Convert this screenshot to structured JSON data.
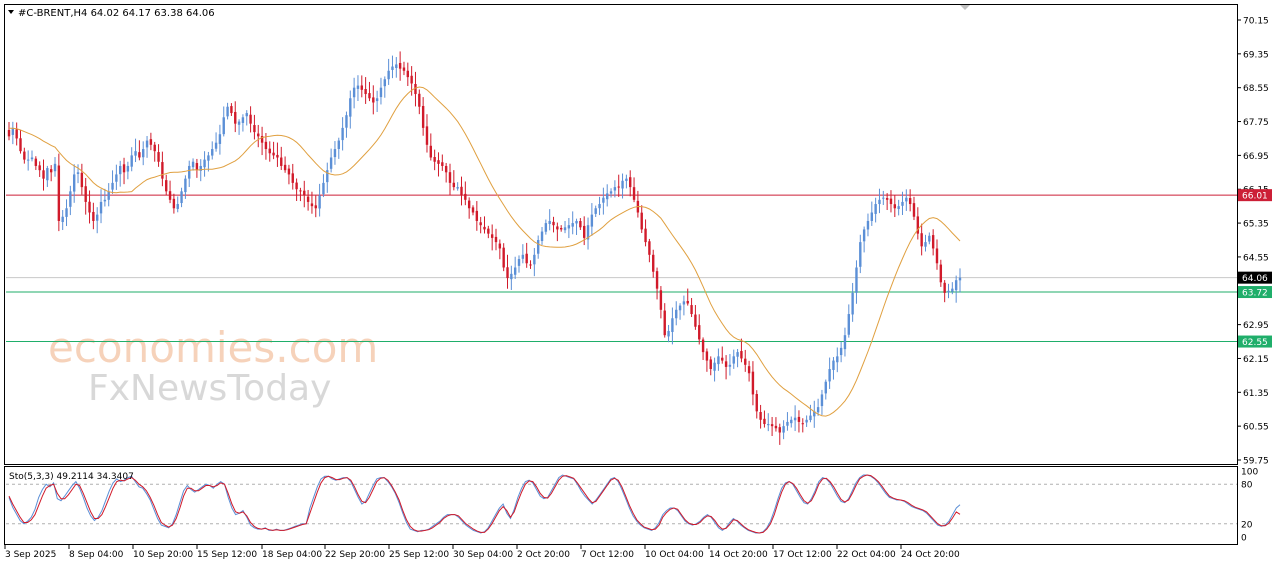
{
  "header": {
    "symbol_line": "#C-BRENT,H4  64.02 64.17 63.38 64.06"
  },
  "watermark": {
    "line1": "economies.com",
    "line2": "FxNewsToday"
  },
  "price_axis": {
    "ticks": [
      "70.15",
      "69.35",
      "68.55",
      "67.75",
      "66.95",
      "66.15",
      "65.35",
      "64.55",
      "63.75",
      "62.95",
      "62.15",
      "61.35",
      "60.55",
      "59.75"
    ],
    "ticks_raw": [
      70.15,
      69.35,
      68.55,
      67.75,
      66.95,
      66.15,
      65.35,
      64.55,
      63.75,
      62.95,
      62.15,
      61.35,
      60.55,
      59.75
    ]
  },
  "levels": {
    "resistance": {
      "label": "66.01",
      "value": 66.01,
      "color": "#cc1f36"
    },
    "current": {
      "label": "64.06",
      "value": 64.06,
      "color": "#000000"
    },
    "support1": {
      "label": "63.72",
      "value": 63.72,
      "color": "#1fae6a"
    },
    "support2": {
      "label": "62.55",
      "value": 62.55,
      "color": "#1fae6a"
    }
  },
  "stochastic": {
    "label": "Sto(5,3,3) 49.2114 34.3407",
    "ticks": [
      "100",
      "80",
      "20",
      "0"
    ],
    "levels": [
      80,
      20
    ],
    "main_color": "#5b8fd6",
    "signal_color": "#d11a2a"
  },
  "time_axis": {
    "labels": [
      "3 Sep 2025",
      "8 Sep 04:00",
      "10 Sep 20:00",
      "15 Sep 12:00",
      "18 Sep 04:00",
      "22 Sep 20:00",
      "25 Sep 12:00",
      "30 Sep 04:00",
      "2 Oct 20:00",
      "7 Oct 12:00",
      "10 Oct 04:00",
      "14 Oct 20:00",
      "17 Oct 12:00",
      "22 Oct 04:00",
      "24 Oct 20:00"
    ]
  },
  "chart_data": {
    "type": "candlestick",
    "instrument": "#C-BRENT",
    "timeframe": "H4",
    "last_bar": {
      "open": 64.02,
      "high": 64.17,
      "low": 63.38,
      "close": 64.06
    },
    "up_color": "#5b8fd6",
    "down_color": "#d11a2a",
    "ma_color": "#e0a040",
    "ylim": [
      59.7,
      70.4
    ],
    "closes": [
      67.4,
      67.6,
      67.35,
      67.05,
      66.85,
      66.85,
      66.9,
      66.7,
      66.6,
      66.4,
      66.65,
      66.55,
      66.75,
      65.4,
      65.5,
      65.7,
      66.1,
      66.5,
      66.55,
      66.2,
      65.85,
      65.6,
      65.4,
      65.55,
      65.85,
      65.9,
      66.1,
      66.3,
      66.5,
      66.7,
      66.55,
      66.7,
      66.95,
      67.05,
      66.9,
      67.1,
      67.3,
      67.2,
      67.05,
      66.8,
      66.4,
      66.1,
      65.9,
      65.7,
      65.8,
      66.1,
      66.4,
      66.7,
      66.8,
      66.6,
      66.7,
      66.85,
      66.95,
      67.1,
      67.25,
      67.45,
      67.85,
      68.1,
      67.95,
      67.7,
      67.75,
      67.85,
      67.95,
      67.7,
      67.5,
      67.4,
      67.25,
      67.1,
      67.0,
      66.95,
      66.9,
      66.7,
      66.6,
      66.5,
      66.3,
      66.15,
      66.1,
      66.0,
      65.85,
      65.75,
      65.7,
      66.0,
      66.3,
      66.6,
      66.9,
      67.1,
      67.3,
      67.6,
      67.9,
      68.3,
      68.55,
      68.6,
      68.5,
      68.4,
      68.3,
      68.2,
      68.3,
      68.55,
      68.75,
      68.95,
      69.05,
      69.1,
      69.0,
      68.95,
      68.8,
      68.65,
      68.4,
      68.1,
      67.6,
      67.2,
      66.9,
      66.8,
      66.75,
      66.7,
      66.55,
      66.3,
      66.2,
      66.2,
      66.0,
      65.9,
      65.7,
      65.6,
      65.4,
      65.3,
      65.2,
      65.1,
      65.0,
      64.9,
      64.75,
      64.3,
      64.05,
      64.15,
      64.3,
      64.5,
      64.6,
      64.4,
      64.35,
      64.6,
      64.95,
      65.15,
      65.35,
      65.4,
      65.3,
      65.2,
      65.2,
      65.25,
      65.3,
      65.35,
      65.4,
      65.25,
      65.0,
      65.3,
      65.55,
      65.7,
      65.8,
      65.95,
      66.05,
      66.1,
      66.2,
      66.2,
      66.35,
      66.4,
      66.2,
      65.9,
      65.6,
      65.2,
      64.9,
      64.6,
      64.2,
      63.8,
      63.3,
      62.7,
      62.8,
      63.1,
      63.3,
      63.4,
      63.5,
      63.45,
      63.2,
      62.9,
      62.6,
      62.3,
      62.1,
      61.9,
      62.05,
      62.2,
      62.1,
      61.95,
      62.0,
      62.2,
      62.3,
      62.15,
      62.0,
      61.8,
      61.3,
      60.9,
      60.7,
      60.6,
      60.6,
      60.55,
      60.5,
      60.4,
      60.55,
      60.65,
      60.7,
      60.75,
      60.65,
      60.6,
      60.7,
      60.8,
      60.9,
      61.0,
      61.3,
      61.6,
      61.9,
      62.1,
      62.2,
      62.4,
      62.7,
      63.2,
      63.7,
      64.3,
      64.9,
      65.2,
      65.4,
      65.6,
      65.8,
      65.9,
      65.95,
      65.9,
      65.8,
      65.7,
      65.75,
      65.85,
      65.95,
      65.8,
      65.5,
      65.1,
      64.8,
      64.9,
      65.05,
      64.75,
      64.4,
      63.95,
      63.7,
      63.75,
      63.8,
      64.0,
      64.06
    ],
    "stoch_main": [
      60,
      45,
      35,
      25,
      20,
      24,
      30,
      42,
      60,
      72,
      80,
      76,
      82,
      58,
      55,
      62,
      70,
      78,
      84,
      74,
      60,
      44,
      32,
      25,
      30,
      40,
      55,
      70,
      82,
      88,
      84,
      86,
      90,
      92,
      84,
      76,
      74,
      66,
      56,
      42,
      28,
      18,
      16,
      14,
      20,
      34,
      52,
      70,
      78,
      72,
      68,
      72,
      76,
      80,
      78,
      74,
      80,
      84,
      80,
      60,
      44,
      34,
      36,
      40,
      30,
      18,
      14,
      12,
      12,
      14,
      10,
      10,
      12,
      10,
      10,
      12,
      14,
      16,
      18,
      20,
      20,
      44,
      60,
      76,
      88,
      92,
      92,
      88,
      86,
      88,
      90,
      90,
      84,
      72,
      60,
      50,
      54,
      66,
      78,
      88,
      90,
      90,
      84,
      76,
      66,
      52,
      36,
      22,
      12,
      10,
      8,
      10,
      10,
      12,
      16,
      20,
      24,
      30,
      34,
      34,
      34,
      30,
      24,
      18,
      14,
      10,
      8,
      6,
      8,
      14,
      24,
      34,
      44,
      50,
      36,
      28,
      42,
      60,
      74,
      84,
      86,
      82,
      72,
      62,
      58,
      60,
      70,
      80,
      90,
      94,
      92,
      90,
      88,
      80,
      70,
      62,
      56,
      50,
      56,
      64,
      72,
      80,
      88,
      90,
      84,
      72,
      58,
      44,
      32,
      24,
      18,
      14,
      12,
      10,
      14,
      22,
      34,
      40,
      44,
      44,
      40,
      32,
      24,
      20,
      18,
      20,
      24,
      30,
      34,
      30,
      22,
      14,
      10,
      14,
      22,
      28,
      24,
      18,
      14,
      10,
      8,
      6,
      6,
      8,
      14,
      24,
      40,
      58,
      74,
      82,
      84,
      80,
      70,
      60,
      52,
      50,
      58,
      70,
      84,
      90,
      88,
      82,
      72,
      62,
      54,
      52,
      58,
      70,
      82,
      90,
      94,
      94,
      92,
      88,
      82,
      74,
      66,
      60,
      58,
      56,
      56,
      54,
      50,
      46,
      44,
      42,
      40,
      36,
      30,
      24,
      18,
      16,
      18,
      24,
      34,
      44,
      49
    ],
    "stoch_signal": [
      62,
      50,
      40,
      30,
      22,
      22,
      26,
      34,
      48,
      62,
      74,
      78,
      80,
      66,
      58,
      58,
      64,
      72,
      80,
      78,
      66,
      52,
      38,
      28,
      28,
      34,
      46,
      60,
      74,
      84,
      86,
      85,
      88,
      90,
      86,
      80,
      76,
      70,
      60,
      48,
      34,
      22,
      18,
      15,
      18,
      28,
      44,
      62,
      74,
      74,
      70,
      70,
      74,
      78,
      78,
      76,
      78,
      82,
      80,
      66,
      50,
      38,
      36,
      38,
      32,
      22,
      16,
      13,
      12,
      13,
      11,
      10,
      11,
      10,
      10,
      11,
      13,
      15,
      17,
      19,
      20,
      36,
      52,
      68,
      82,
      90,
      92,
      90,
      87,
      87,
      89,
      90,
      86,
      76,
      64,
      54,
      52,
      60,
      72,
      84,
      89,
      90,
      86,
      78,
      68,
      56,
      40,
      26,
      16,
      11,
      9,
      9,
      10,
      11,
      14,
      18,
      22,
      28,
      32,
      34,
      34,
      32,
      26,
      20,
      16,
      12,
      9,
      7,
      7,
      12,
      20,
      30,
      40,
      46,
      40,
      30,
      38,
      54,
      68,
      80,
      85,
      84,
      76,
      66,
      60,
      59,
      66,
      76,
      86,
      92,
      93,
      91,
      89,
      82,
      74,
      66,
      58,
      52,
      54,
      62,
      70,
      78,
      86,
      89,
      86,
      76,
      62,
      48,
      36,
      26,
      20,
      15,
      13,
      11,
      12,
      18,
      30,
      37,
      42,
      44,
      42,
      34,
      26,
      21,
      19,
      19,
      22,
      28,
      32,
      31,
      25,
      17,
      12,
      13,
      19,
      26,
      25,
      20,
      15,
      11,
      9,
      7,
      6,
      7,
      12,
      20,
      34,
      52,
      68,
      80,
      84,
      81,
      74,
      64,
      55,
      51,
      55,
      66,
      80,
      88,
      89,
      84,
      76,
      66,
      57,
      53,
      56,
      66,
      78,
      88,
      92,
      94,
      93,
      89,
      84,
      77,
      69,
      62,
      59,
      57,
      56,
      55,
      52,
      48,
      45,
      43,
      41,
      38,
      32,
      26,
      20,
      17,
      17,
      21,
      29,
      38,
      34.34
    ]
  }
}
